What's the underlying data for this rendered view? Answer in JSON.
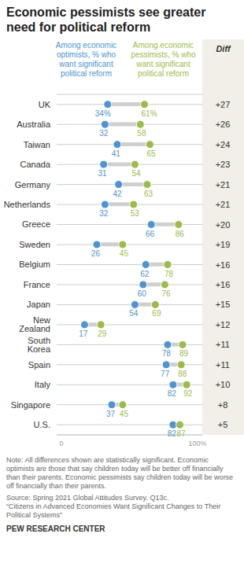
{
  "chart_data": {
    "type": "dumbbell",
    "title": "Economic pessimists see greater need for political reform",
    "orientation": "horizontal",
    "categories": [
      "UK",
      "Australia",
      "Taiwan",
      "Canada",
      "Germany",
      "Netherlands",
      "Greece",
      "Sweden",
      "Belgium",
      "France",
      "Japan",
      "New Zealand",
      "South Korea",
      "Spain",
      "Italy",
      "Singapore",
      "U.S."
    ],
    "series": [
      {
        "name": "Among economic optimists, % who want significant political reform",
        "color": "#4e94d1",
        "values": [
          34,
          32,
          41,
          31,
          42,
          32,
          66,
          26,
          62,
          60,
          54,
          17,
          78,
          77,
          82,
          37,
          82
        ],
        "value_labels": [
          "34%",
          "32",
          "41",
          "31",
          "42",
          "32",
          "66",
          "26",
          "62",
          "60",
          "54",
          "17",
          "78",
          "77",
          "82",
          "37",
          "82"
        ]
      },
      {
        "name": "Among economic pessimists, % who want significant political reform",
        "color": "#9cbb4a",
        "values": [
          61,
          58,
          65,
          54,
          63,
          53,
          86,
          45,
          78,
          76,
          69,
          29,
          89,
          88,
          92,
          45,
          87
        ],
        "value_labels": [
          "61%",
          "58",
          "65",
          "54",
          "63",
          "53",
          "86",
          "45",
          "78",
          "76",
          "69",
          "29",
          "89",
          "88",
          "92",
          "45",
          "87"
        ]
      }
    ],
    "diff": {
      "title": "Diff",
      "labels": [
        "+27",
        "+26",
        "+24",
        "+23",
        "+21",
        "+21",
        "+20",
        "+19",
        "+16",
        "+16",
        "+15",
        "+12",
        "+11",
        "+11",
        "+10",
        "+8",
        "+5"
      ]
    },
    "xlim": [
      0,
      100
    ],
    "xticks": [
      0,
      {
        "value": 100,
        "label": "100%"
      }
    ],
    "grid": true,
    "data_labels": true,
    "footnotes": [
      "Note: All differences shown are statistically significant. Economic optimists are those that say children today will be better off financially than their parents. Economic pessimists say children today will be worse off financially than their parents.",
      "Source: Spring 2021 Global Attitudes Survey. Q13c.",
      "“Citizens in Advanced Economies Want Significant Changes to Their Political Systems”"
    ],
    "credit": "PEW RESEARCH CENTER"
  }
}
